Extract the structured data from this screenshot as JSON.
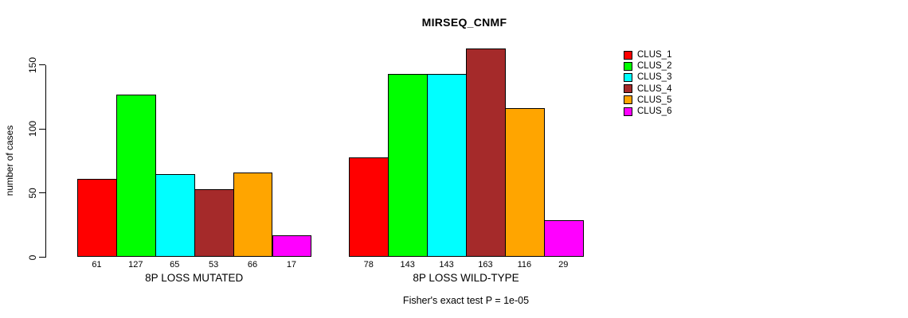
{
  "title": "MIRSEQ_CNMF",
  "footer": "Fisher's exact test P = 1e-05",
  "chart_data": {
    "type": "bar",
    "title": "MIRSEQ_CNMF",
    "ylabel": "number of cases",
    "xlabel": "",
    "ylim": [
      0,
      150
    ],
    "yticks": [
      0,
      50,
      100,
      150
    ],
    "grid": false,
    "legend_position": "right",
    "bar_value_labels": true,
    "categories": [
      "8P LOSS MUTATED",
      "8P LOSS WILD-TYPE"
    ],
    "series": [
      {
        "name": "CLUS_1",
        "color": "#FF0000",
        "values": [
          61,
          78
        ]
      },
      {
        "name": "CLUS_2",
        "color": "#00FF00",
        "values": [
          127,
          143
        ]
      },
      {
        "name": "CLUS_3",
        "color": "#00FFFF",
        "values": [
          65,
          143
        ]
      },
      {
        "name": "CLUS_4",
        "color": "#A52A2A",
        "values": [
          53,
          163
        ]
      },
      {
        "name": "CLUS_5",
        "color": "#FFA500",
        "values": [
          66,
          116
        ]
      },
      {
        "name": "CLUS_6",
        "color": "#FF00FF",
        "values": [
          17,
          29
        ]
      }
    ],
    "annotation": "Fisher's exact test P = 1e-05"
  }
}
